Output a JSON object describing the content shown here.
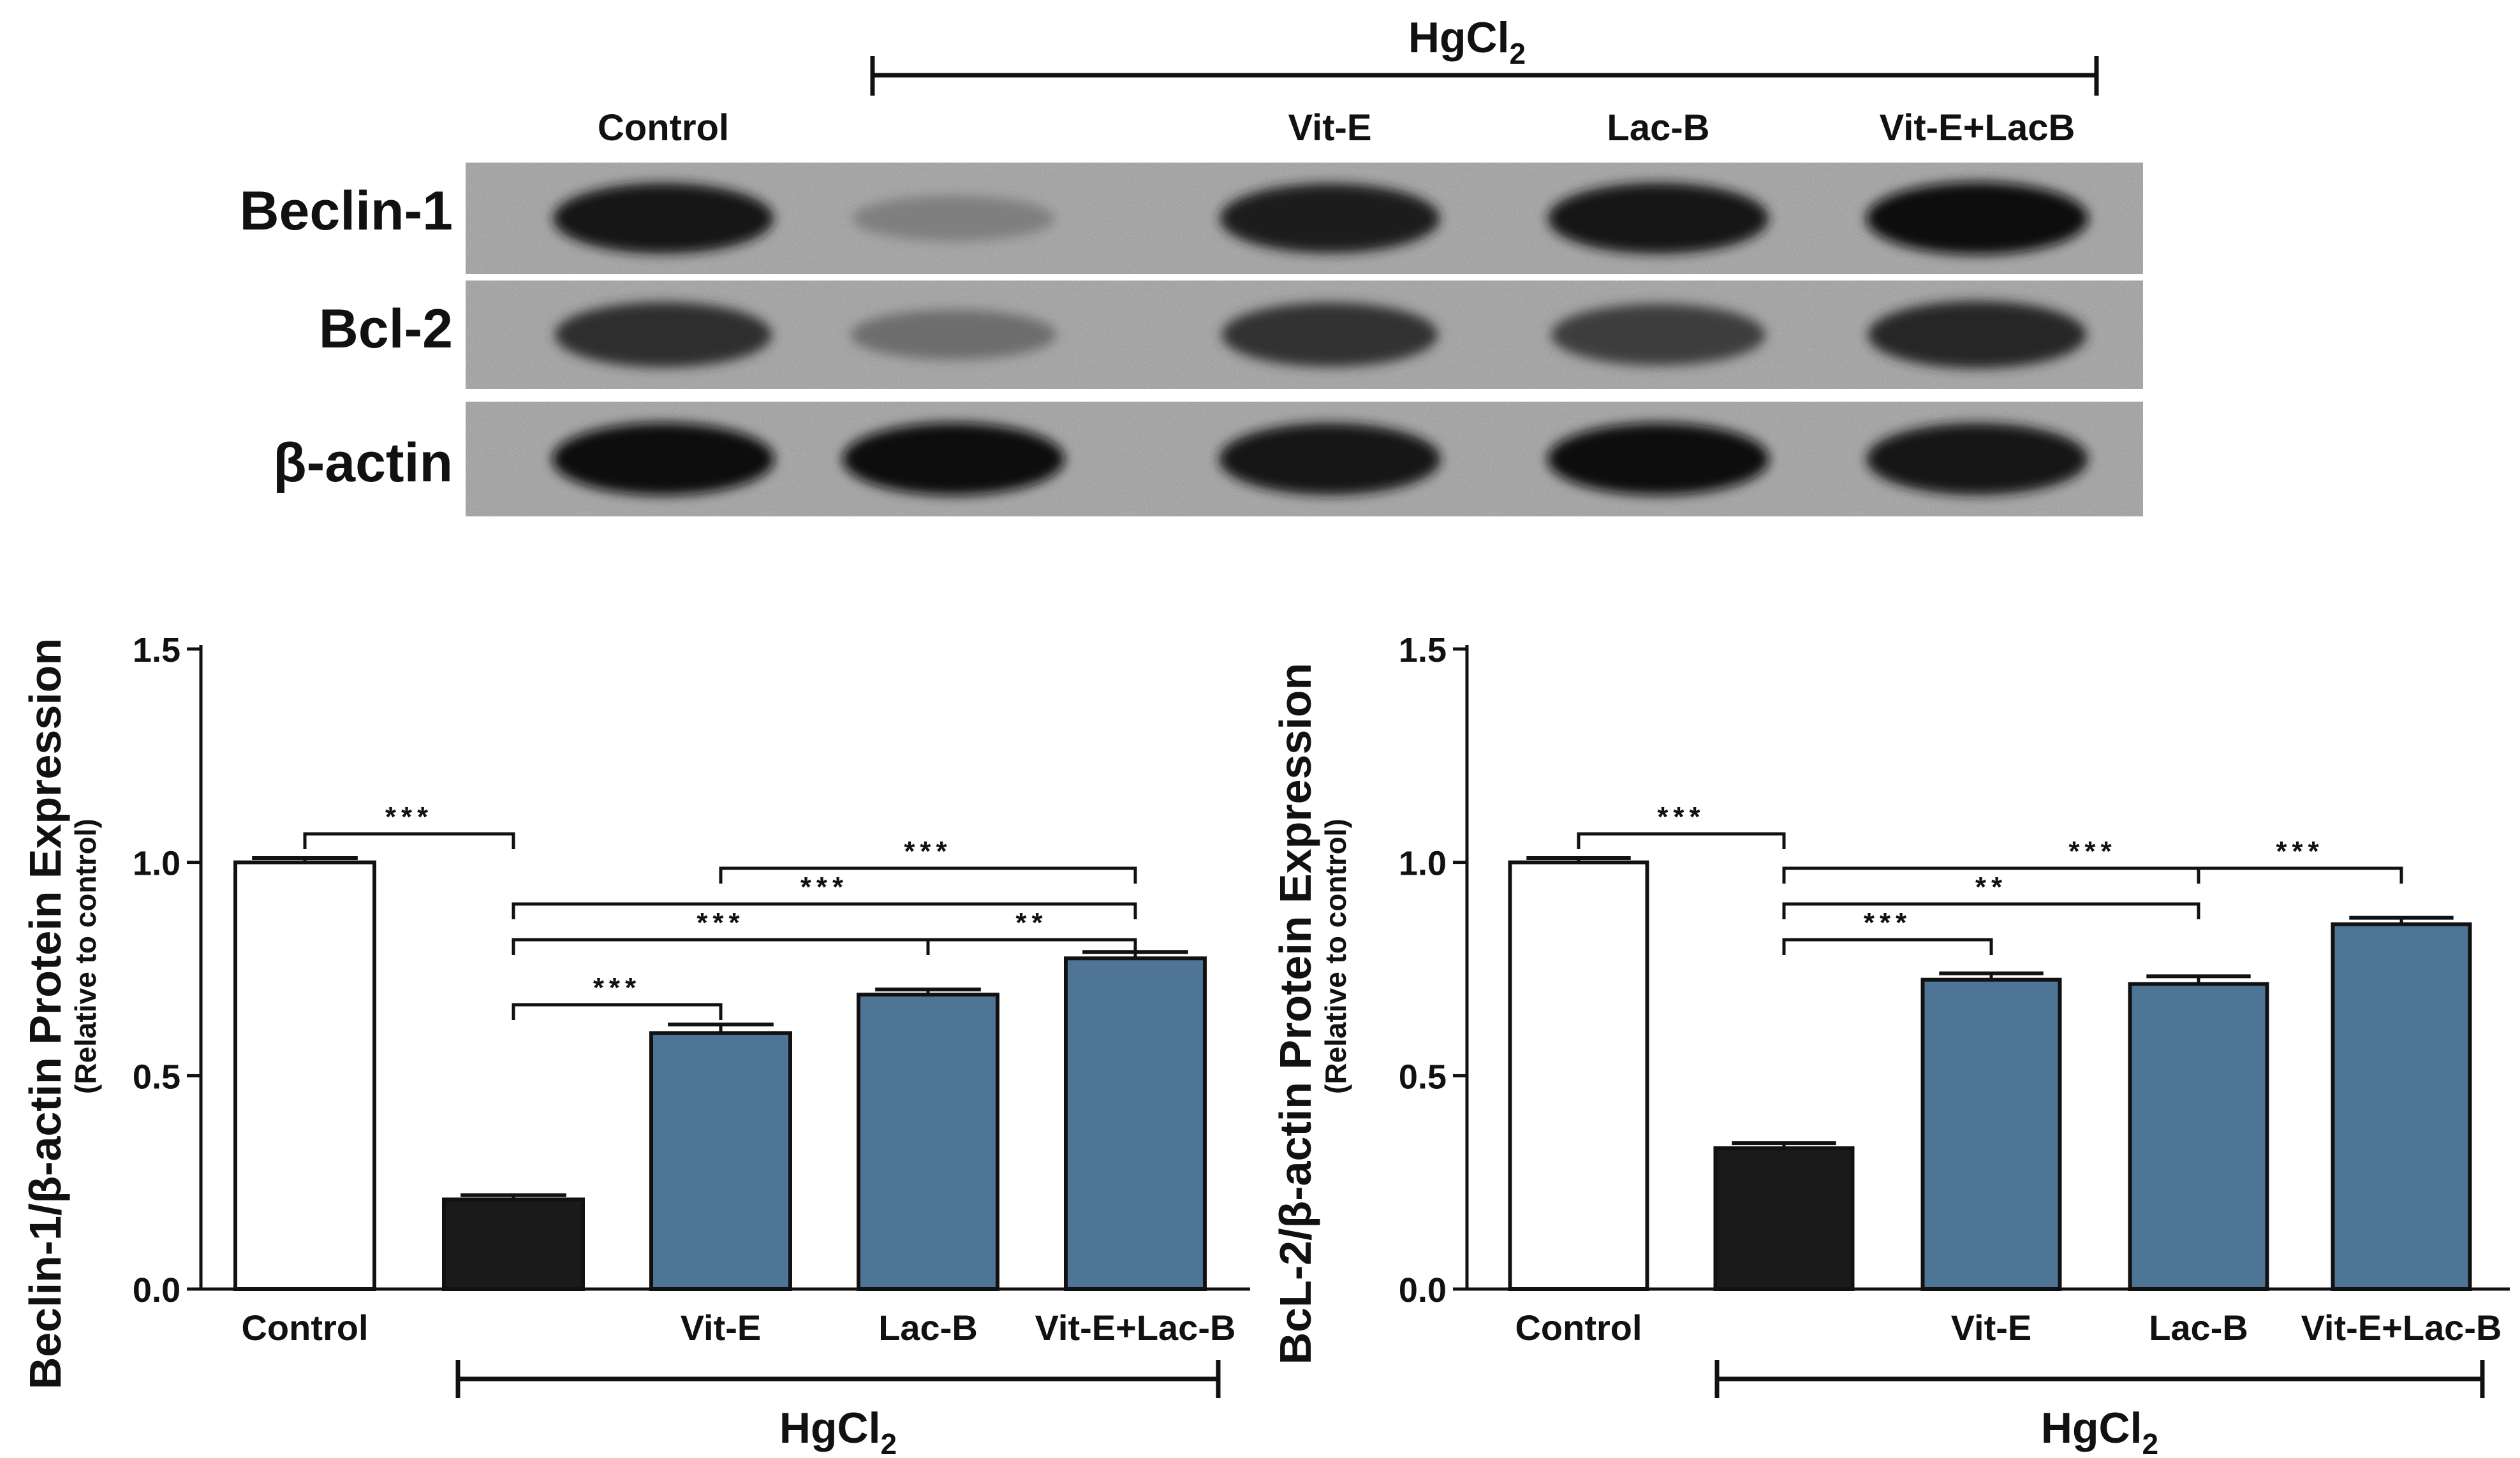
{
  "blot": {
    "treatment_label": "HgCl",
    "treatment_sub": "2",
    "lanes": [
      "Control",
      "",
      "Vit-E",
      "Lac-B",
      "Vit-E+LacB"
    ],
    "rows": [
      {
        "protein": "Beclin-1",
        "intensities": [
          0.92,
          0.35,
          0.9,
          0.93,
          0.97
        ]
      },
      {
        "protein": "Bcl-2",
        "intensities": [
          0.8,
          0.45,
          0.78,
          0.72,
          0.85
        ]
      },
      {
        "protein": "β-actin",
        "intensities": [
          0.97,
          0.97,
          0.95,
          0.96,
          0.95
        ]
      }
    ]
  },
  "chart_data": [
    {
      "type": "bar",
      "ylabel": "Beclin-1/β-actin Protein Expression",
      "ylabel_sub": "(Relative to control)",
      "categories": [
        "Control",
        "",
        "Vit-E",
        "Lac-B",
        "Vit-E+Lac-B"
      ],
      "values": [
        1.0,
        0.21,
        0.6,
        0.69,
        0.775
      ],
      "errors": [
        0.01,
        0.01,
        0.02,
        0.012,
        0.015
      ],
      "bar_colors": [
        "#ffffff",
        "#1a1a1a",
        "#4e7596",
        "#4e7596",
        "#4e7596"
      ],
      "ylim": [
        0,
        1.5
      ],
      "yticks": [
        "0.0",
        "0.5",
        "1.0",
        "1.5"
      ],
      "treatment_label": "HgCl",
      "treatment_sub": "2",
      "significance": [
        {
          "from": 0,
          "to": 1,
          "label": "***"
        },
        {
          "from": 2,
          "to": 4,
          "label": "***"
        },
        {
          "from": 1,
          "to": 4,
          "label": "***"
        },
        {
          "from": 1,
          "to": 3,
          "label": "***"
        },
        {
          "from": 3,
          "to": 4,
          "label": "**"
        },
        {
          "from": 1,
          "to": 2,
          "label": "***"
        }
      ]
    },
    {
      "type": "bar",
      "ylabel": "BcL-2/β-actin Protein Expression",
      "ylabel_sub": "(Relative to control)",
      "categories": [
        "Control",
        "",
        "Vit-E",
        "Lac-B",
        "Vit-E+Lac-B"
      ],
      "values": [
        1.0,
        0.33,
        0.725,
        0.715,
        0.855
      ],
      "errors": [
        0.01,
        0.012,
        0.015,
        0.018,
        0.015
      ],
      "bar_colors": [
        "#ffffff",
        "#1a1a1a",
        "#4e7596",
        "#4e7596",
        "#4e7596"
      ],
      "ylim": [
        0,
        1.5
      ],
      "yticks": [
        "0.0",
        "0.5",
        "1.0",
        "1.5"
      ],
      "treatment_label": "HgCl",
      "treatment_sub": "2",
      "significance": [
        {
          "from": 0,
          "to": 1,
          "label": "***"
        },
        {
          "from": 1,
          "to": 4,
          "label": "***"
        },
        {
          "from": 1,
          "to": 3,
          "label": "**"
        },
        {
          "from": 3,
          "to": 4,
          "label": "***"
        },
        {
          "from": 1,
          "to": 2,
          "label": "***"
        }
      ]
    }
  ]
}
